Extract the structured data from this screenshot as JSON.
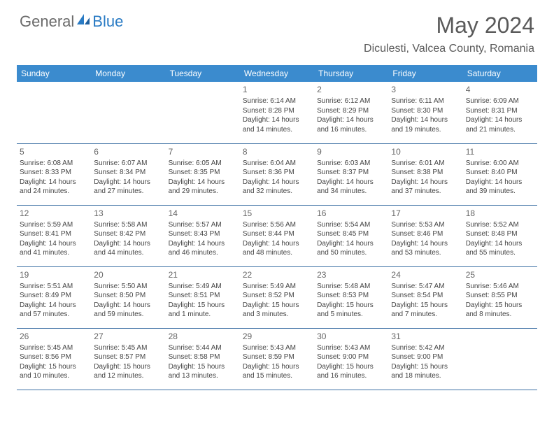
{
  "logo": {
    "general": "General",
    "blue": "Blue"
  },
  "title": "May 2024",
  "location": "Diculesti, Valcea County, Romania",
  "colors": {
    "header_bg": "#3b8bce",
    "header_text": "#ffffff",
    "divider": "#3b6fa3",
    "body_text": "#444444",
    "title_text": "#5a5a5a",
    "logo_blue": "#2a7bc4",
    "logo_gray": "#6b6b6b",
    "background": "#ffffff"
  },
  "day_headers": [
    "Sunday",
    "Monday",
    "Tuesday",
    "Wednesday",
    "Thursday",
    "Friday",
    "Saturday"
  ],
  "weeks": [
    [
      null,
      null,
      null,
      {
        "n": "1",
        "sr": "6:14 AM",
        "ss": "8:28 PM",
        "dl1": "Daylight: 14 hours",
        "dl2": "and 14 minutes."
      },
      {
        "n": "2",
        "sr": "6:12 AM",
        "ss": "8:29 PM",
        "dl1": "Daylight: 14 hours",
        "dl2": "and 16 minutes."
      },
      {
        "n": "3",
        "sr": "6:11 AM",
        "ss": "8:30 PM",
        "dl1": "Daylight: 14 hours",
        "dl2": "and 19 minutes."
      },
      {
        "n": "4",
        "sr": "6:09 AM",
        "ss": "8:31 PM",
        "dl1": "Daylight: 14 hours",
        "dl2": "and 21 minutes."
      }
    ],
    [
      {
        "n": "5",
        "sr": "6:08 AM",
        "ss": "8:33 PM",
        "dl1": "Daylight: 14 hours",
        "dl2": "and 24 minutes."
      },
      {
        "n": "6",
        "sr": "6:07 AM",
        "ss": "8:34 PM",
        "dl1": "Daylight: 14 hours",
        "dl2": "and 27 minutes."
      },
      {
        "n": "7",
        "sr": "6:05 AM",
        "ss": "8:35 PM",
        "dl1": "Daylight: 14 hours",
        "dl2": "and 29 minutes."
      },
      {
        "n": "8",
        "sr": "6:04 AM",
        "ss": "8:36 PM",
        "dl1": "Daylight: 14 hours",
        "dl2": "and 32 minutes."
      },
      {
        "n": "9",
        "sr": "6:03 AM",
        "ss": "8:37 PM",
        "dl1": "Daylight: 14 hours",
        "dl2": "and 34 minutes."
      },
      {
        "n": "10",
        "sr": "6:01 AM",
        "ss": "8:38 PM",
        "dl1": "Daylight: 14 hours",
        "dl2": "and 37 minutes."
      },
      {
        "n": "11",
        "sr": "6:00 AM",
        "ss": "8:40 PM",
        "dl1": "Daylight: 14 hours",
        "dl2": "and 39 minutes."
      }
    ],
    [
      {
        "n": "12",
        "sr": "5:59 AM",
        "ss": "8:41 PM",
        "dl1": "Daylight: 14 hours",
        "dl2": "and 41 minutes."
      },
      {
        "n": "13",
        "sr": "5:58 AM",
        "ss": "8:42 PM",
        "dl1": "Daylight: 14 hours",
        "dl2": "and 44 minutes."
      },
      {
        "n": "14",
        "sr": "5:57 AM",
        "ss": "8:43 PM",
        "dl1": "Daylight: 14 hours",
        "dl2": "and 46 minutes."
      },
      {
        "n": "15",
        "sr": "5:56 AM",
        "ss": "8:44 PM",
        "dl1": "Daylight: 14 hours",
        "dl2": "and 48 minutes."
      },
      {
        "n": "16",
        "sr": "5:54 AM",
        "ss": "8:45 PM",
        "dl1": "Daylight: 14 hours",
        "dl2": "and 50 minutes."
      },
      {
        "n": "17",
        "sr": "5:53 AM",
        "ss": "8:46 PM",
        "dl1": "Daylight: 14 hours",
        "dl2": "and 53 minutes."
      },
      {
        "n": "18",
        "sr": "5:52 AM",
        "ss": "8:48 PM",
        "dl1": "Daylight: 14 hours",
        "dl2": "and 55 minutes."
      }
    ],
    [
      {
        "n": "19",
        "sr": "5:51 AM",
        "ss": "8:49 PM",
        "dl1": "Daylight: 14 hours",
        "dl2": "and 57 minutes."
      },
      {
        "n": "20",
        "sr": "5:50 AM",
        "ss": "8:50 PM",
        "dl1": "Daylight: 14 hours",
        "dl2": "and 59 minutes."
      },
      {
        "n": "21",
        "sr": "5:49 AM",
        "ss": "8:51 PM",
        "dl1": "Daylight: 15 hours",
        "dl2": "and 1 minute."
      },
      {
        "n": "22",
        "sr": "5:49 AM",
        "ss": "8:52 PM",
        "dl1": "Daylight: 15 hours",
        "dl2": "and 3 minutes."
      },
      {
        "n": "23",
        "sr": "5:48 AM",
        "ss": "8:53 PM",
        "dl1": "Daylight: 15 hours",
        "dl2": "and 5 minutes."
      },
      {
        "n": "24",
        "sr": "5:47 AM",
        "ss": "8:54 PM",
        "dl1": "Daylight: 15 hours",
        "dl2": "and 7 minutes."
      },
      {
        "n": "25",
        "sr": "5:46 AM",
        "ss": "8:55 PM",
        "dl1": "Daylight: 15 hours",
        "dl2": "and 8 minutes."
      }
    ],
    [
      {
        "n": "26",
        "sr": "5:45 AM",
        "ss": "8:56 PM",
        "dl1": "Daylight: 15 hours",
        "dl2": "and 10 minutes."
      },
      {
        "n": "27",
        "sr": "5:45 AM",
        "ss": "8:57 PM",
        "dl1": "Daylight: 15 hours",
        "dl2": "and 12 minutes."
      },
      {
        "n": "28",
        "sr": "5:44 AM",
        "ss": "8:58 PM",
        "dl1": "Daylight: 15 hours",
        "dl2": "and 13 minutes."
      },
      {
        "n": "29",
        "sr": "5:43 AM",
        "ss": "8:59 PM",
        "dl1": "Daylight: 15 hours",
        "dl2": "and 15 minutes."
      },
      {
        "n": "30",
        "sr": "5:43 AM",
        "ss": "9:00 PM",
        "dl1": "Daylight: 15 hours",
        "dl2": "and 16 minutes."
      },
      {
        "n": "31",
        "sr": "5:42 AM",
        "ss": "9:00 PM",
        "dl1": "Daylight: 15 hours",
        "dl2": "and 18 minutes."
      },
      null
    ]
  ],
  "labels": {
    "sunrise_prefix": "Sunrise: ",
    "sunset_prefix": "Sunset: "
  },
  "typography": {
    "title_fontsize": 32,
    "location_fontsize": 16,
    "header_fontsize": 12,
    "cell_fontsize": 10,
    "daynum_fontsize": 12
  }
}
